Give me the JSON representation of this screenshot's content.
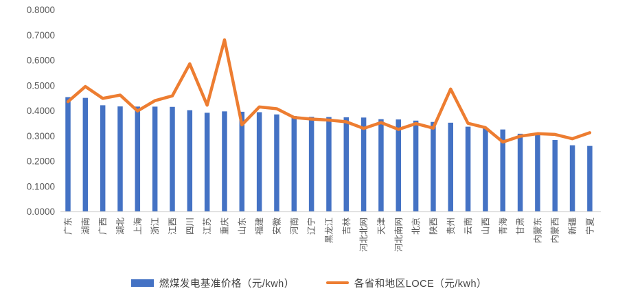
{
  "chart_data": {
    "type": "bar-line-combo",
    "title": "",
    "xlabel": "",
    "ylabel": "",
    "ylim": [
      0,
      0.8
    ],
    "ytick_step": 0.1,
    "yticks": [
      "0.0000",
      "0.1000",
      "0.2000",
      "0.3000",
      "0.4000",
      "0.5000",
      "0.6000",
      "0.7000",
      "0.8000"
    ],
    "grid": false,
    "legend_position": "bottom",
    "axis_line_color": "#d9d9d9",
    "tick_label_color": "#595959",
    "category_label_color": "#595959",
    "categories": [
      "广东",
      "湖南",
      "广西",
      "湖北",
      "上海",
      "浙江",
      "江西",
      "四川",
      "江苏",
      "重庆",
      "山东",
      "福建",
      "安徽",
      "河南",
      "辽宁",
      "黑龙江",
      "吉林",
      "河北北网",
      "天津",
      "河北南网",
      "北京",
      "陕西",
      "贵州",
      "云南",
      "山西",
      "青海",
      "甘肃",
      "内蒙东",
      "内蒙西",
      "新疆",
      "宁夏"
    ],
    "series": [
      {
        "name": "燃煤发电基准价格（元/kwh）",
        "type": "bar",
        "color": "#4472c4",
        "values": [
          0.453,
          0.45,
          0.4207,
          0.4161,
          0.4155,
          0.4153,
          0.4143,
          0.4012,
          0.391,
          0.3964,
          0.3949,
          0.3932,
          0.3844,
          0.3779,
          0.3749,
          0.374,
          0.3731,
          0.372,
          0.3655,
          0.3644,
          0.3598,
          0.3545,
          0.3515,
          0.3358,
          0.332,
          0.3247,
          0.3078,
          0.3035,
          0.2829,
          0.262,
          0.2595
        ]
      },
      {
        "name": "各省和地区LOCE（元/kwh）",
        "type": "line",
        "color": "#ed7d31",
        "values": [
          0.435,
          0.495,
          0.448,
          0.461,
          0.398,
          0.439,
          0.458,
          0.585,
          0.421,
          0.68,
          0.343,
          0.414,
          0.407,
          0.372,
          0.366,
          0.362,
          0.355,
          0.329,
          0.352,
          0.325,
          0.348,
          0.33,
          0.485,
          0.349,
          0.332,
          0.275,
          0.298,
          0.308,
          0.305,
          0.288,
          0.312
        ]
      }
    ]
  }
}
